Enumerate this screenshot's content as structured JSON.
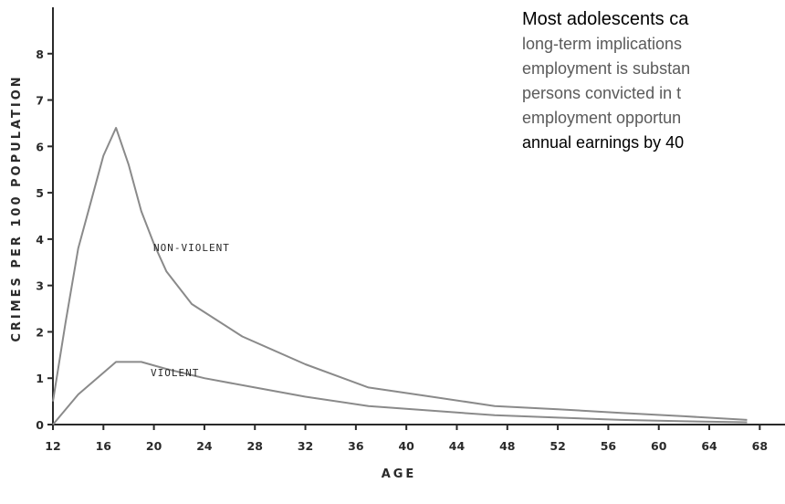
{
  "chart_data": {
    "type": "line",
    "xlabel": "AGE",
    "ylabel": "CRIMES PER 100 POPULATION",
    "xlim": [
      12,
      70
    ],
    "ylim": [
      0,
      9
    ],
    "xticks": [
      "12",
      "16",
      "20",
      "24",
      "28",
      "32",
      "36",
      "40",
      "44",
      "48",
      "52",
      "56",
      "60",
      "64",
      "68"
    ],
    "yticks": [
      "0",
      "1",
      "2",
      "3",
      "4",
      "5",
      "6",
      "7",
      "8"
    ],
    "series": [
      {
        "name": "NON-VIOLENT",
        "x": [
          12,
          13,
          14,
          15,
          16,
          17,
          18,
          19,
          20,
          21,
          23,
          27,
          32,
          37,
          42,
          47,
          52,
          57,
          62,
          67
        ],
        "y": [
          0.5,
          2.2,
          3.8,
          4.8,
          5.8,
          6.4,
          5.6,
          4.6,
          3.9,
          3.3,
          2.6,
          1.9,
          1.3,
          0.8,
          0.6,
          0.4,
          0.33,
          0.25,
          0.18,
          0.1
        ]
      },
      {
        "name": "VIOLENT",
        "x": [
          12,
          14,
          17,
          19,
          21,
          24,
          28,
          32,
          37,
          42,
          47,
          52,
          57,
          62,
          67
        ],
        "y": [
          0,
          0.65,
          1.35,
          1.35,
          1.2,
          1.0,
          0.8,
          0.6,
          0.4,
          0.3,
          0.2,
          0.15,
          0.1,
          0.07,
          0.05
        ]
      }
    ]
  },
  "text_panel": {
    "headline": "Most adolescents ca",
    "line1": "long-term implications",
    "line2": "employment is substan",
    "line3": "persons convicted in t",
    "line4": "employment opportun",
    "line5": "annual earnings by 40"
  }
}
